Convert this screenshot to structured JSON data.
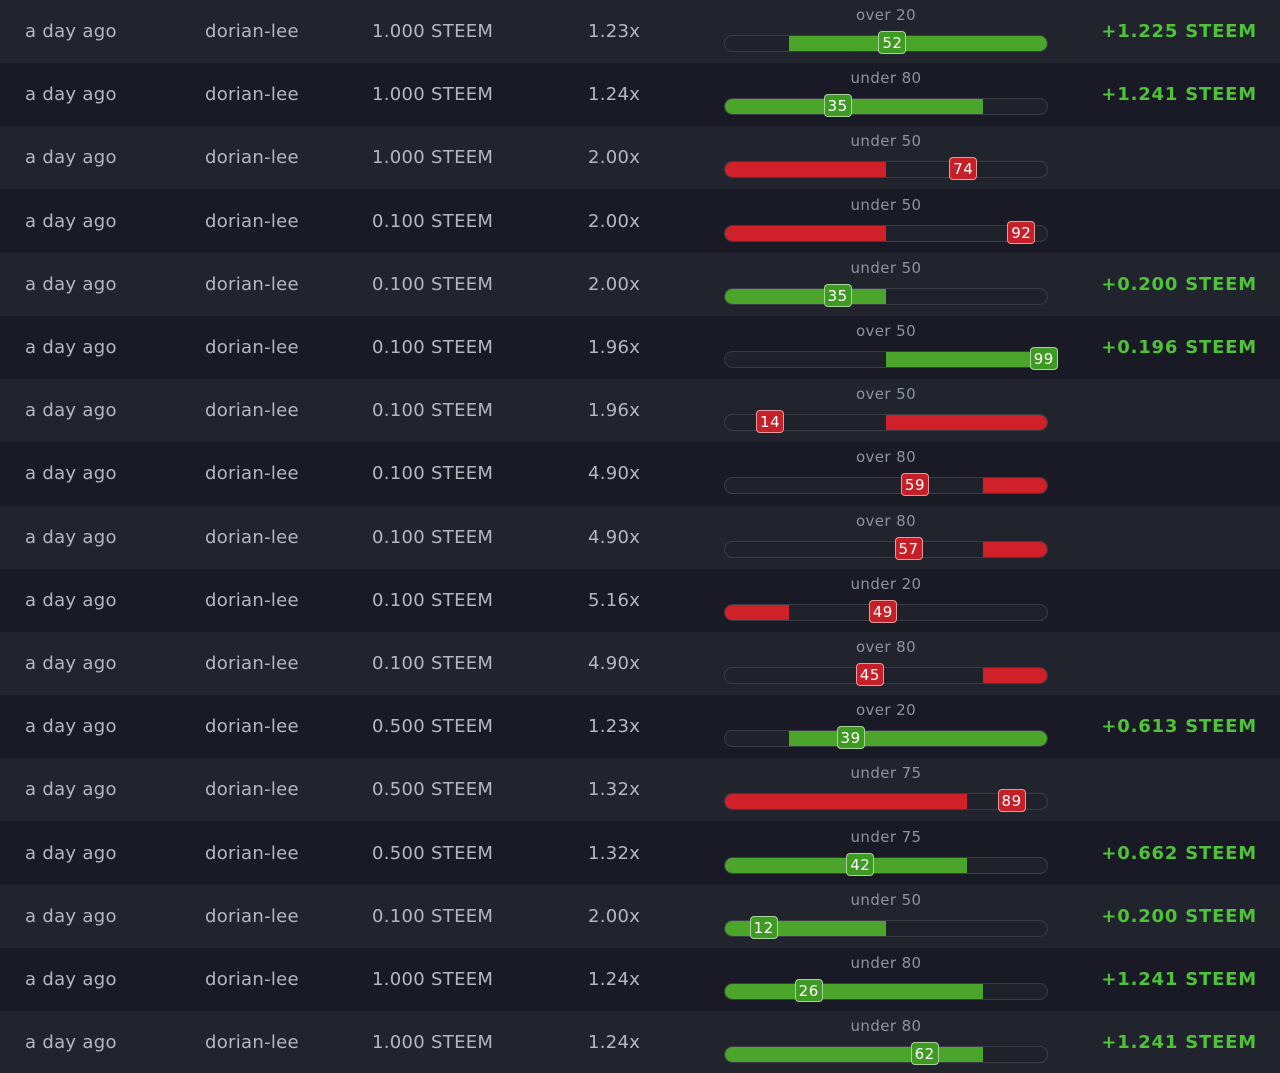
{
  "colors": {
    "win": "#4aa52a",
    "lose": "#d0202a",
    "payout": "#4fc23a",
    "row_even": "#22242d",
    "row_odd": "#1a1a26"
  },
  "bets": [
    {
      "time": "a day ago",
      "user": "dorian-lee",
      "amount": "1.000 STEEM",
      "multiplier": "1.23x",
      "target_label": "over 20",
      "direction": "over",
      "target": 20,
      "roll": "52",
      "result": "win",
      "payout": "+1.225 STEEM"
    },
    {
      "time": "a day ago",
      "user": "dorian-lee",
      "amount": "1.000 STEEM",
      "multiplier": "1.24x",
      "target_label": "under 80",
      "direction": "under",
      "target": 80,
      "roll": "35",
      "result": "win",
      "payout": "+1.241 STEEM"
    },
    {
      "time": "a day ago",
      "user": "dorian-lee",
      "amount": "1.000 STEEM",
      "multiplier": "2.00x",
      "target_label": "under 50",
      "direction": "under",
      "target": 50,
      "roll": "74",
      "result": "lose",
      "payout": ""
    },
    {
      "time": "a day ago",
      "user": "dorian-lee",
      "amount": "0.100 STEEM",
      "multiplier": "2.00x",
      "target_label": "under 50",
      "direction": "under",
      "target": 50,
      "roll": "92",
      "result": "lose",
      "payout": ""
    },
    {
      "time": "a day ago",
      "user": "dorian-lee",
      "amount": "0.100 STEEM",
      "multiplier": "2.00x",
      "target_label": "under 50",
      "direction": "under",
      "target": 50,
      "roll": "35",
      "result": "win",
      "payout": "+0.200 STEEM"
    },
    {
      "time": "a day ago",
      "user": "dorian-lee",
      "amount": "0.100 STEEM",
      "multiplier": "1.96x",
      "target_label": "over 50",
      "direction": "over",
      "target": 50,
      "roll": "99",
      "result": "win",
      "payout": "+0.196 STEEM"
    },
    {
      "time": "a day ago",
      "user": "dorian-lee",
      "amount": "0.100 STEEM",
      "multiplier": "1.96x",
      "target_label": "over 50",
      "direction": "over",
      "target": 50,
      "roll": "14",
      "result": "lose",
      "payout": ""
    },
    {
      "time": "a day ago",
      "user": "dorian-lee",
      "amount": "0.100 STEEM",
      "multiplier": "4.90x",
      "target_label": "over 80",
      "direction": "over",
      "target": 80,
      "roll": "59",
      "result": "lose",
      "payout": ""
    },
    {
      "time": "a day ago",
      "user": "dorian-lee",
      "amount": "0.100 STEEM",
      "multiplier": "4.90x",
      "target_label": "over 80",
      "direction": "over",
      "target": 80,
      "roll": "57",
      "result": "lose",
      "payout": ""
    },
    {
      "time": "a day ago",
      "user": "dorian-lee",
      "amount": "0.100 STEEM",
      "multiplier": "5.16x",
      "target_label": "under 20",
      "direction": "under",
      "target": 20,
      "roll": "49",
      "result": "lose",
      "payout": ""
    },
    {
      "time": "a day ago",
      "user": "dorian-lee",
      "amount": "0.100 STEEM",
      "multiplier": "4.90x",
      "target_label": "over 80",
      "direction": "over",
      "target": 80,
      "roll": "45",
      "result": "lose",
      "payout": ""
    },
    {
      "time": "a day ago",
      "user": "dorian-lee",
      "amount": "0.500 STEEM",
      "multiplier": "1.23x",
      "target_label": "over 20",
      "direction": "over",
      "target": 20,
      "roll": "39",
      "result": "win",
      "payout": "+0.613 STEEM"
    },
    {
      "time": "a day ago",
      "user": "dorian-lee",
      "amount": "0.500 STEEM",
      "multiplier": "1.32x",
      "target_label": "under 75",
      "direction": "under",
      "target": 75,
      "roll": "89",
      "result": "lose",
      "payout": ""
    },
    {
      "time": "a day ago",
      "user": "dorian-lee",
      "amount": "0.500 STEEM",
      "multiplier": "1.32x",
      "target_label": "under 75",
      "direction": "under",
      "target": 75,
      "roll": "42",
      "result": "win",
      "payout": "+0.662 STEEM"
    },
    {
      "time": "a day ago",
      "user": "dorian-lee",
      "amount": "0.100 STEEM",
      "multiplier": "2.00x",
      "target_label": "under 50",
      "direction": "under",
      "target": 50,
      "roll": "12",
      "result": "win",
      "payout": "+0.200 STEEM"
    },
    {
      "time": "a day ago",
      "user": "dorian-lee",
      "amount": "1.000 STEEM",
      "multiplier": "1.24x",
      "target_label": "under 80",
      "direction": "under",
      "target": 80,
      "roll": "26",
      "result": "win",
      "payout": "+1.241 STEEM"
    },
    {
      "time": "a day ago",
      "user": "dorian-lee",
      "amount": "1.000 STEEM",
      "multiplier": "1.24x",
      "target_label": "under 80",
      "direction": "under",
      "target": 80,
      "roll": "62",
      "result": "win",
      "payout": "+1.241 STEEM"
    }
  ]
}
